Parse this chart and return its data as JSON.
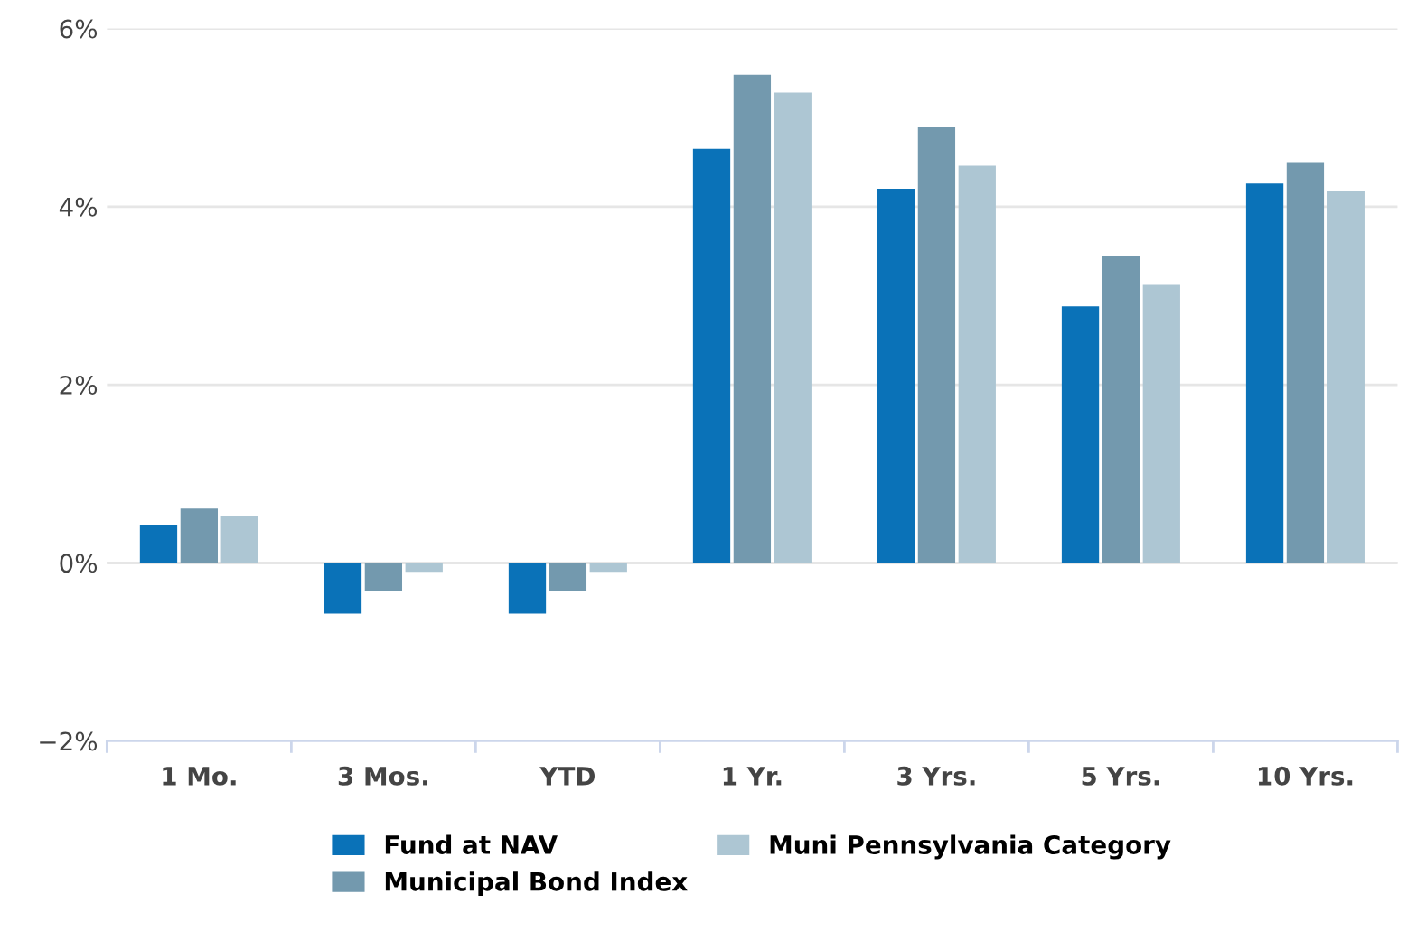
{
  "chart_data": {
    "type": "bar",
    "categories": [
      "1 Mo.",
      "3 Mos.",
      "YTD",
      "1 Yr.",
      "3 Yrs.",
      "5 Yrs.",
      "10 Yrs."
    ],
    "series": [
      {
        "name": "Fund at NAV",
        "color": "#0a72b8",
        "values": [
          0.43,
          -0.57,
          -0.57,
          4.65,
          4.2,
          2.88,
          4.26
        ]
      },
      {
        "name": "Municipal Bond Index",
        "color": "#7399ae",
        "values": [
          0.61,
          -0.32,
          -0.32,
          5.48,
          4.89,
          3.45,
          4.5
        ]
      },
      {
        "name": "Muni Pennsylvania Category",
        "color": "#adc6d3",
        "values": [
          0.53,
          -0.1,
          -0.1,
          5.28,
          4.46,
          3.12,
          4.18
        ]
      }
    ],
    "ylim": [
      -2,
      6
    ],
    "yticks": [
      {
        "value": -2,
        "label": "−2%"
      },
      {
        "value": 0,
        "label": "0%"
      },
      {
        "value": 2,
        "label": "2%"
      },
      {
        "value": 4,
        "label": "4%"
      },
      {
        "value": 6,
        "label": "6%"
      }
    ],
    "grid": "y",
    "legend": "bottom"
  }
}
